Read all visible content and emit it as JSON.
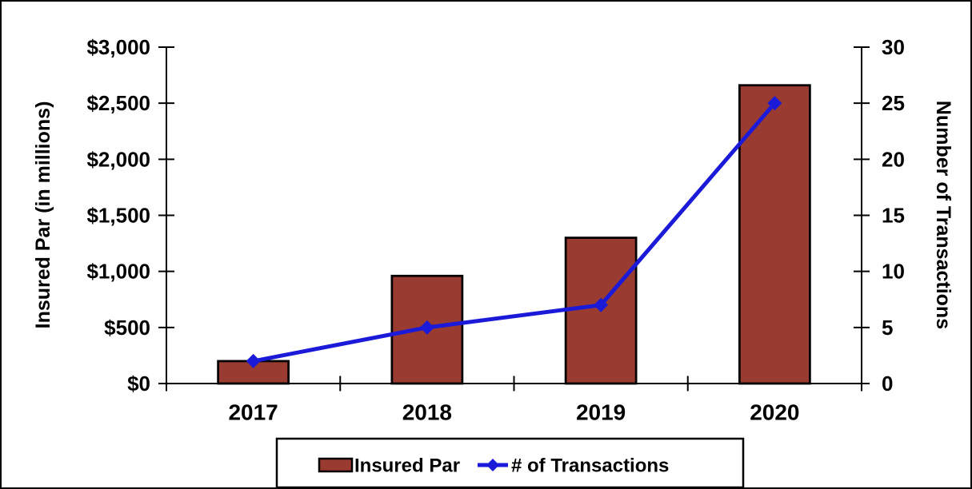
{
  "chart_data": {
    "type": "combo-bar-line",
    "categories": [
      "2017",
      "2018",
      "2019",
      "2020"
    ],
    "series": [
      {
        "name": "Insured Par",
        "type": "bar",
        "axis": "left",
        "values": [
          200,
          960,
          1300,
          2660
        ],
        "color": "#9A3B32",
        "border_color": "#000000"
      },
      {
        "name": "# of Transactions",
        "type": "line",
        "axis": "right",
        "values": [
          2,
          5,
          7,
          25
        ],
        "color": "#1A1AD8",
        "marker": "diamond"
      }
    ],
    "left_axis": {
      "label": "Insured Par (in millions)",
      "min": 0,
      "max": 3000,
      "tick_values": [
        0,
        500,
        1000,
        1500,
        2000,
        2500,
        3000
      ],
      "tick_labels": [
        "$0",
        "$500",
        "$1,000",
        "$1,500",
        "$2,000",
        "$2,500",
        "$3,000"
      ]
    },
    "right_axis": {
      "label": "Number of Transactions",
      "min": 0,
      "max": 30,
      "tick_values": [
        0,
        5,
        10,
        15,
        20,
        25,
        30
      ],
      "tick_labels": [
        "0",
        "5",
        "10",
        "15",
        "20",
        "25",
        "30"
      ]
    },
    "legend": {
      "position": "bottom",
      "entries": [
        "Insured Par",
        "# of Transactions"
      ]
    },
    "grid": false
  },
  "colors": {
    "background": "#FFFFFF",
    "canvas_border": "#000000",
    "axis": "#000000",
    "bar_fill": "#9A3B32",
    "line_stroke": "#1A1AD8",
    "text": "#000000"
  }
}
